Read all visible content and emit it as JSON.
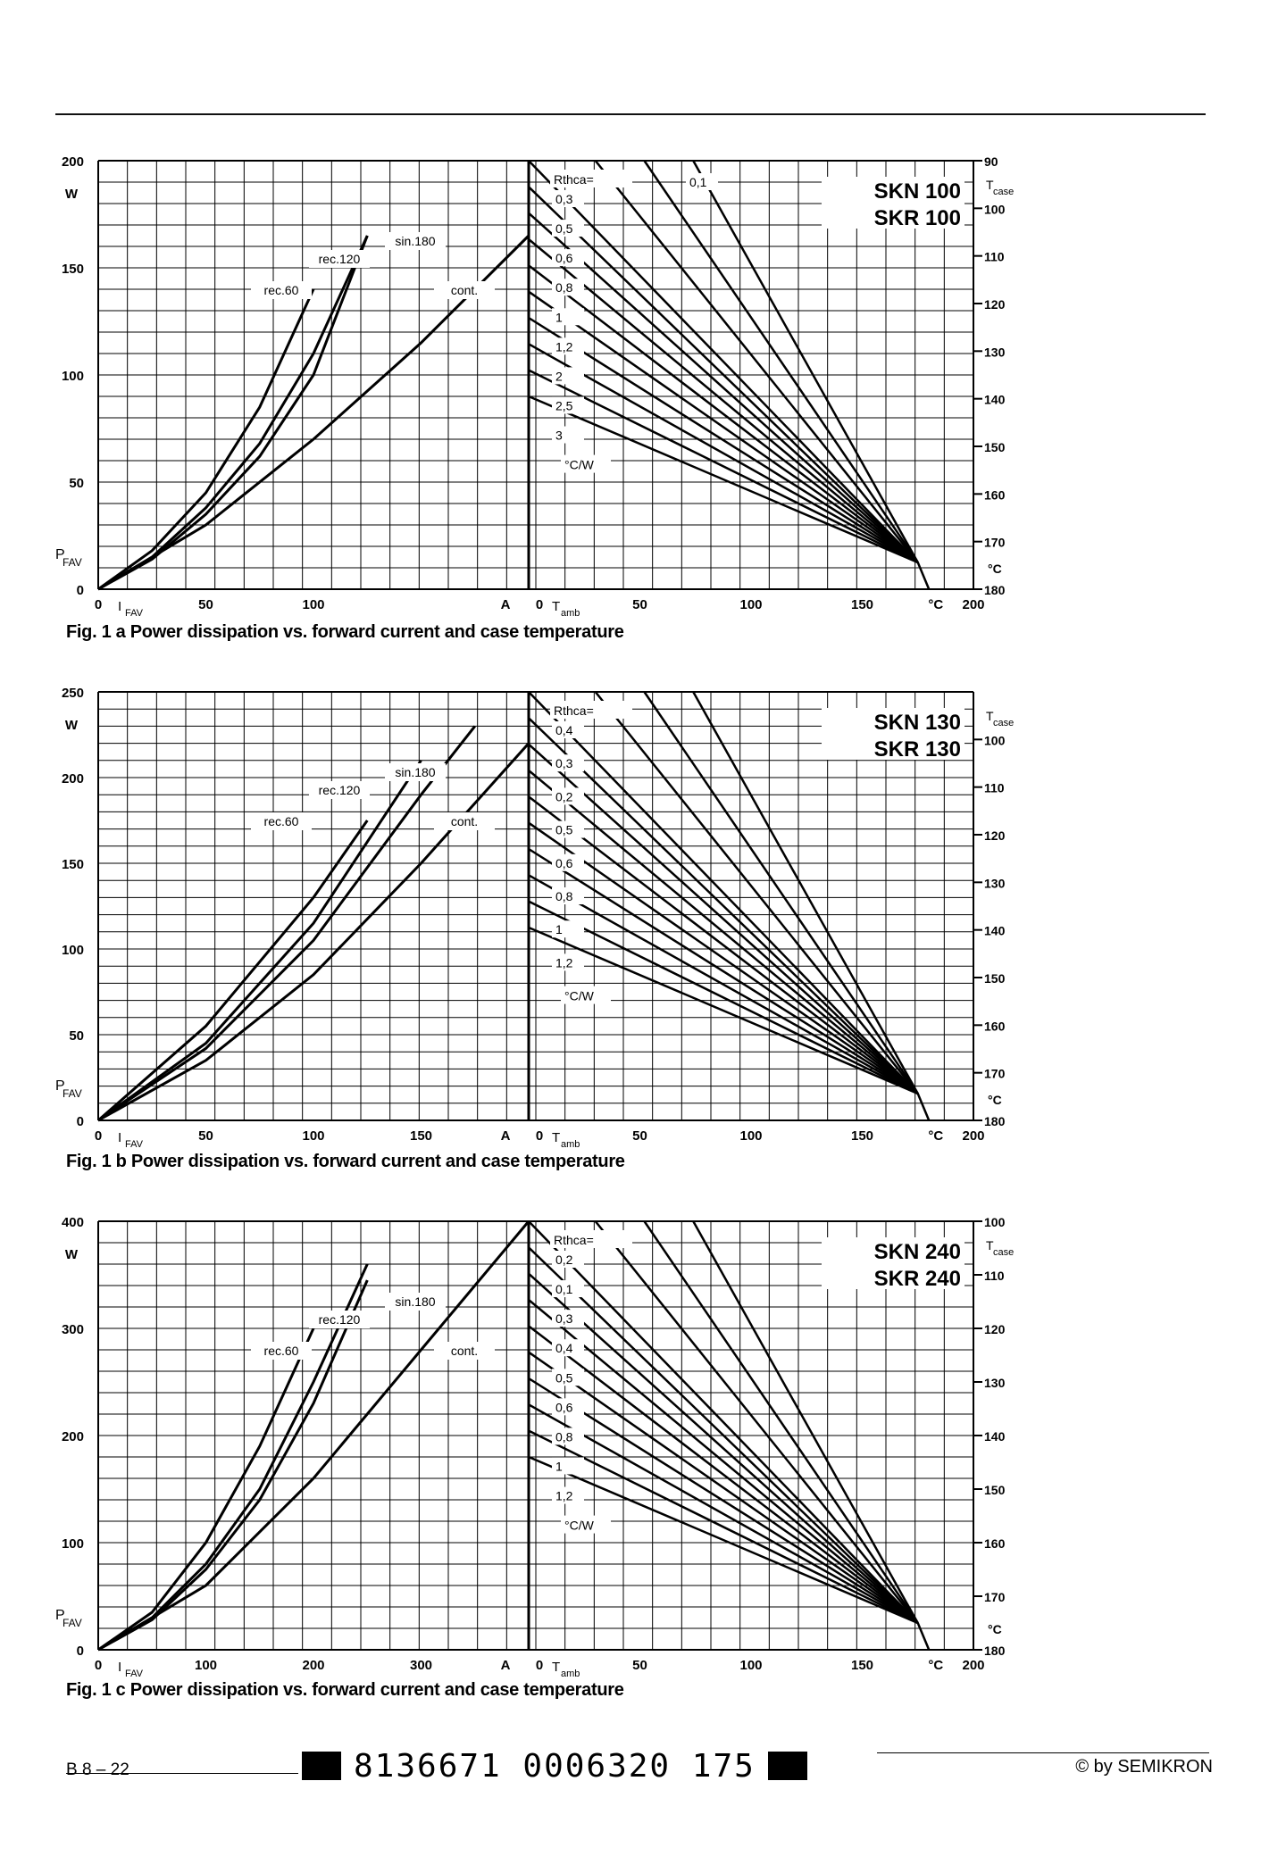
{
  "charts": [
    {
      "product": [
        "SKN 100",
        "SKR 100"
      ],
      "caption": "Fig. 1 a  Power dissipation vs. forward current and case temperature",
      "y_axis": {
        "label": "P",
        "sub": "FAV",
        "unit": "W",
        "ticks": [
          "0",
          "50",
          "100",
          "150",
          "200"
        ],
        "max": 200
      },
      "x_left": {
        "label": "I",
        "sub": "FAV",
        "unit": "A",
        "ticks": [
          "0",
          "50",
          "100"
        ],
        "max": 200
      },
      "x_right": {
        "label": "T",
        "sub": "amb",
        "unit": "°C",
        "ticks": [
          "0",
          "50",
          "100",
          "150",
          "200"
        ]
      },
      "t_case": {
        "label": "T",
        "sub": "case",
        "unit": "°C",
        "ticks": [
          "90",
          "100",
          "110",
          "120",
          "130",
          "140",
          "150",
          "160",
          "170",
          "180"
        ]
      },
      "curve_labels": [
        "rec.60",
        "rec.120",
        "sin.180",
        "cont."
      ],
      "rth_prefix": "Rthca=",
      "rth_unit": "°C/W",
      "rth_labels": [
        "0,3",
        "0,5",
        "0,6",
        "0,8",
        "1",
        "1,2",
        "2",
        "2,5",
        "3"
      ],
      "rth_extra": "0,1"
    },
    {
      "product": [
        "SKN 130",
        "SKR 130"
      ],
      "caption": "Fig. 1 b  Power dissipation vs. forward current and case temperature",
      "y_axis": {
        "label": "P",
        "sub": "FAV",
        "unit": "W",
        "ticks": [
          "0",
          "50",
          "100",
          "150",
          "200",
          "250"
        ],
        "max": 250
      },
      "x_left": {
        "label": "I",
        "sub": "FAV",
        "unit": "A",
        "ticks": [
          "0",
          "50",
          "100",
          "150"
        ],
        "max": 200
      },
      "x_right": {
        "label": "T",
        "sub": "amb",
        "unit": "°C",
        "ticks": [
          "0",
          "50",
          "100",
          "150",
          "200"
        ]
      },
      "t_case": {
        "label": "T",
        "sub": "case",
        "unit": "°C",
        "ticks": [
          "100",
          "110",
          "120",
          "130",
          "140",
          "150",
          "160",
          "170",
          "180"
        ]
      },
      "curve_labels": [
        "rec.60",
        "rec.120",
        "sin.180",
        "cont."
      ],
      "rth_prefix": "Rthca=",
      "rth_unit": "°C/W",
      "rth_labels": [
        "0,4",
        "0,3",
        "0,2",
        "0,5",
        "0,6",
        "0,8",
        "1",
        "1,2"
      ],
      "rth_extra": ""
    },
    {
      "product": [
        "SKN 240",
        "SKR 240"
      ],
      "caption": "Fig. 1 c  Power dissipation vs. forward current and case temperature",
      "y_axis": {
        "label": "P",
        "sub": "FAV",
        "unit": "W",
        "ticks": [
          "0",
          "100",
          "200",
          "300",
          "400"
        ],
        "max": 400
      },
      "x_left": {
        "label": "I",
        "sub": "FAV",
        "unit": "A",
        "ticks": [
          "0",
          "100",
          "200",
          "300"
        ],
        "max": 400
      },
      "x_right": {
        "label": "T",
        "sub": "amb",
        "unit": "°C",
        "ticks": [
          "0",
          "50",
          "100",
          "150",
          "200"
        ]
      },
      "t_case": {
        "label": "T",
        "sub": "case",
        "unit": "°C",
        "ticks": [
          "100",
          "110",
          "120",
          "130",
          "140",
          "150",
          "160",
          "170",
          "180"
        ]
      },
      "curve_labels": [
        "rec.60",
        "rec.120",
        "sin.180",
        "cont."
      ],
      "rth_prefix": "Rthca=",
      "rth_unit": "°C/W",
      "rth_labels": [
        "0,2",
        "0,1",
        "0,3",
        "0,4",
        "0,5",
        "0,6",
        "0,8",
        "1",
        "1,2"
      ],
      "rth_extra": ""
    }
  ],
  "chart_data": [
    {
      "type": "line",
      "title": "Fig. 1 a Power dissipation vs. forward current and case temperature",
      "xlabel": "IFAV (A)",
      "ylabel": "PFAV (W)",
      "ylim": [
        0,
        200
      ],
      "xlim": [
        0,
        200
      ],
      "series": [
        {
          "name": "rec.60",
          "x": [
            0,
            25,
            50,
            75,
            100
          ],
          "y": [
            0,
            18,
            45,
            85,
            140
          ]
        },
        {
          "name": "rec.120",
          "x": [
            0,
            25,
            50,
            75,
            100,
            125
          ],
          "y": [
            0,
            15,
            38,
            68,
            110,
            165
          ]
        },
        {
          "name": "sin.180",
          "x": [
            0,
            25,
            50,
            75,
            100,
            125
          ],
          "y": [
            0,
            14,
            35,
            62,
            100,
            165
          ]
        },
        {
          "name": "cont.",
          "x": [
            0,
            50,
            100,
            150,
            200
          ],
          "y": [
            0,
            30,
            70,
            115,
            165
          ]
        }
      ],
      "rth_lines": [
        0.1,
        0.3,
        0.5,
        0.6,
        0.8,
        1,
        1.2,
        2,
        2.5,
        3
      ],
      "tcase_range": [
        90,
        180
      ]
    },
    {
      "type": "line",
      "title": "Fig. 1 b Power dissipation vs. forward current and case temperature",
      "xlabel": "IFAV (A)",
      "ylabel": "PFAV (W)",
      "ylim": [
        0,
        250
      ],
      "xlim": [
        0,
        200
      ],
      "series": [
        {
          "name": "rec.60",
          "x": [
            0,
            50,
            100,
            125
          ],
          "y": [
            0,
            55,
            130,
            175
          ]
        },
        {
          "name": "rec.120",
          "x": [
            0,
            50,
            100,
            150
          ],
          "y": [
            0,
            45,
            115,
            210
          ]
        },
        {
          "name": "sin.180",
          "x": [
            0,
            50,
            100,
            150,
            175
          ],
          "y": [
            0,
            42,
            105,
            190,
            230
          ]
        },
        {
          "name": "cont.",
          "x": [
            0,
            50,
            100,
            150,
            200
          ],
          "y": [
            0,
            35,
            85,
            150,
            220
          ]
        }
      ],
      "rth_lines": [
        0.2,
        0.3,
        0.4,
        0.5,
        0.6,
        0.8,
        1,
        1.2
      ],
      "tcase_range": [
        90,
        180
      ]
    },
    {
      "type": "line",
      "title": "Fig. 1 c Power dissipation vs. forward current and case temperature",
      "xlabel": "IFAV (A)",
      "ylabel": "PFAV (W)",
      "ylim": [
        0,
        400
      ],
      "xlim": [
        0,
        400
      ],
      "series": [
        {
          "name": "rec.60",
          "x": [
            0,
            50,
            100,
            150,
            200
          ],
          "y": [
            0,
            35,
            100,
            190,
            300
          ]
        },
        {
          "name": "rec.120",
          "x": [
            0,
            50,
            100,
            150,
            200,
            250
          ],
          "y": [
            0,
            30,
            80,
            150,
            250,
            360
          ]
        },
        {
          "name": "sin.180",
          "x": [
            0,
            50,
            100,
            150,
            200,
            250
          ],
          "y": [
            0,
            28,
            75,
            140,
            230,
            345
          ]
        },
        {
          "name": "cont.",
          "x": [
            0,
            100,
            200,
            300,
            400
          ],
          "y": [
            0,
            60,
            160,
            280,
            400
          ]
        }
      ],
      "rth_lines": [
        0.1,
        0.2,
        0.3,
        0.4,
        0.5,
        0.6,
        0.8,
        1,
        1.2
      ],
      "tcase_range": [
        100,
        180
      ]
    }
  ],
  "footer": {
    "page": "B 8 – 22",
    "code": "8136671 0006320 175",
    "copyright": "© by SEMIKRON"
  }
}
